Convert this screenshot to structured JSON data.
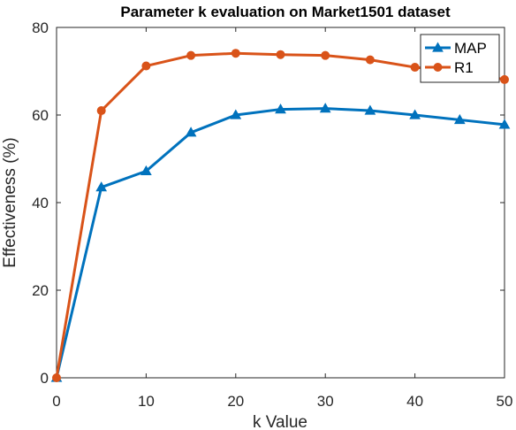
{
  "chart_data": {
    "type": "line",
    "title": "Parameter k evaluation on Market1501 dataset",
    "xlabel": "k Value",
    "ylabel": "Effectiveness (%)",
    "xlim": [
      0,
      50
    ],
    "ylim": [
      0,
      80
    ],
    "xticks": [
      0,
      10,
      20,
      30,
      40,
      50
    ],
    "yticks": [
      0,
      20,
      40,
      60,
      80
    ],
    "grid": false,
    "legend_position": "top-right",
    "x": [
      0,
      5,
      10,
      15,
      20,
      25,
      30,
      35,
      40,
      45,
      50
    ],
    "series": [
      {
        "name": "MAP",
        "marker": "triangle",
        "color": "#0072BD",
        "values": [
          0,
          43.5,
          47.2,
          56.0,
          60.0,
          61.3,
          61.5,
          61.0,
          60.0,
          58.9,
          57.8
        ]
      },
      {
        "name": "R1",
        "marker": "circle",
        "color": "#D95319",
        "values": [
          0,
          61.0,
          71.2,
          73.6,
          74.1,
          73.8,
          73.6,
          72.6,
          70.9,
          69.9,
          68.1
        ]
      }
    ]
  }
}
